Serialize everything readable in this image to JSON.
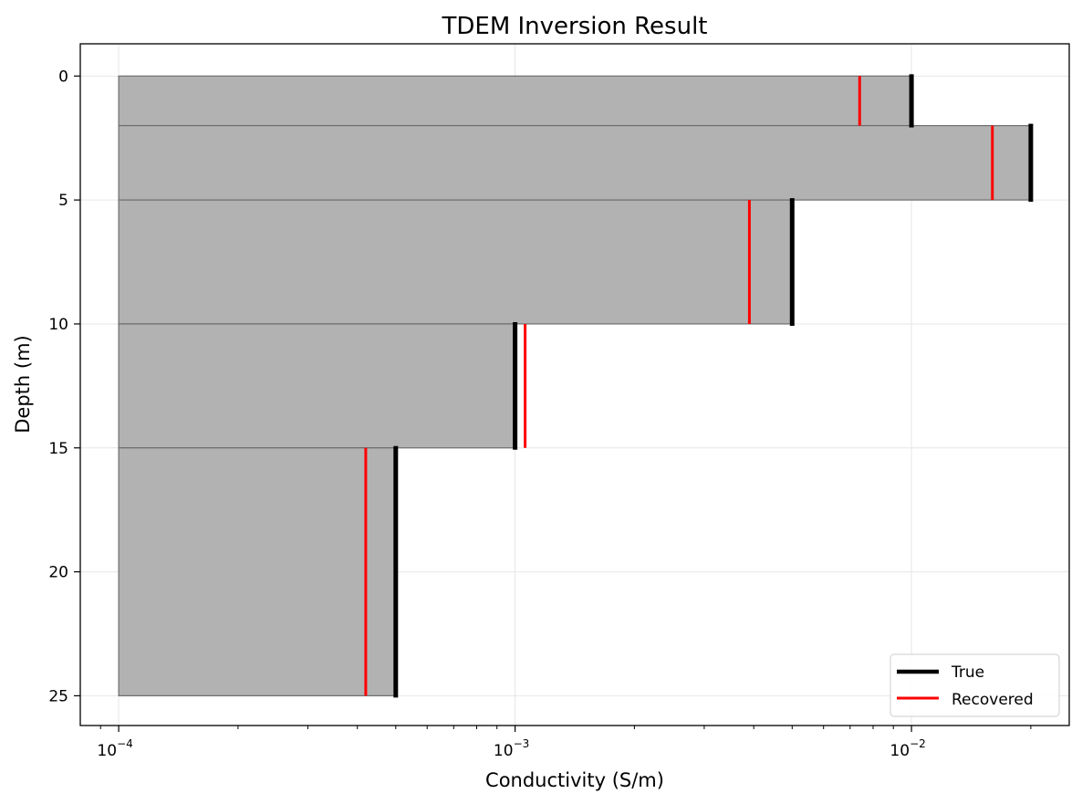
{
  "chart_data": {
    "type": "bar",
    "orientation": "horizontal",
    "title": "TDEM Inversion Result",
    "xlabel": "Conductivity (S/m)",
    "ylabel": "Depth (m)",
    "xscale": "log",
    "xlim": [
      8e-05,
      0.025
    ],
    "ylim": [
      26.2,
      -1.3
    ],
    "y_axis_inverted": true,
    "x_ticks": [
      {
        "value": 0.0001,
        "base": "10",
        "exponent": "−4"
      },
      {
        "value": 0.001,
        "base": "10",
        "exponent": "−3"
      },
      {
        "value": 0.01,
        "base": "10",
        "exponent": "−2"
      }
    ],
    "y_ticks": [
      {
        "value": 0,
        "label": "0"
      },
      {
        "value": 5,
        "label": "5"
      },
      {
        "value": 10,
        "label": "10"
      },
      {
        "value": 15,
        "label": "15"
      },
      {
        "value": 20,
        "label": "20"
      },
      {
        "value": 25,
        "label": "25"
      }
    ],
    "grid": true,
    "bar_base": 0.0001,
    "layers": [
      {
        "top": 0,
        "bottom": 2,
        "true": 0.01,
        "recovered": 0.0074
      },
      {
        "top": 2,
        "bottom": 5,
        "true": 0.02,
        "recovered": 0.016
      },
      {
        "top": 5,
        "bottom": 10,
        "true": 0.005,
        "recovered": 0.0039
      },
      {
        "top": 10,
        "bottom": 15,
        "true": 0.001,
        "recovered": 0.00106
      },
      {
        "top": 15,
        "bottom": 25,
        "true": 0.0005,
        "recovered": 0.00042
      }
    ],
    "legend": {
      "position": "lower right",
      "entries": [
        {
          "label": "True",
          "color": "#000000"
        },
        {
          "label": "Recovered",
          "color": "#ff0000"
        }
      ]
    },
    "colors": {
      "fill": "#b2b2b2",
      "layer_edge": "#6e6e6e",
      "grid": "#e6e6e6"
    }
  }
}
